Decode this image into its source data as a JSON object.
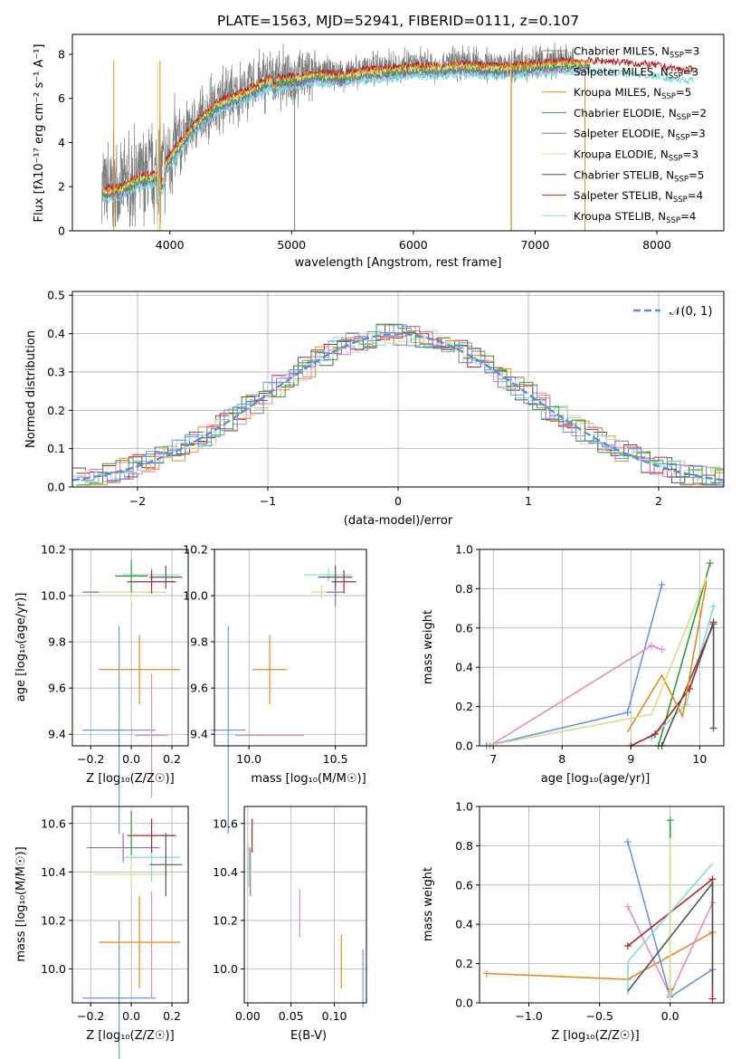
{
  "title": "PLATE=1563, MJD=52941, FIBERID=0111, z=0.107",
  "colors": {
    "Chabrier MILES": "#808080",
    "Salpeter MILES": "#e377c2",
    "Kroupa MILES": "#e88a1a",
    "Chabrier ELODIE": "#2ca02c",
    "Salpeter ELODIE": "#9467bd",
    "Kroupa ELODIE": "#dbdb8d",
    "Chabrier STELIB": "#555555",
    "Salpeter STELIB": "#b22222",
    "Kroupa STELIB": "#7fdbe0",
    "blue": "#6495ed",
    "pink": "#e88ac2",
    "gaussian": "#5b8fd6"
  },
  "spectrum": {
    "xlabel": "wavelength [Angstrom, rest frame]",
    "ylabel": "Flux [fλ10⁻¹⁷ erg cm⁻² s⁻¹ A⁻¹]",
    "xlim": [
      3200,
      8550
    ],
    "ylim": [
      0,
      8.9
    ],
    "xticks": [
      "4000",
      "5000",
      "6000",
      "7000",
      "8000"
    ],
    "yticks": [
      "0",
      "2",
      "4",
      "6",
      "8"
    ],
    "legend": [
      {
        "label": "Chabrier MILES, N",
        "sub": "SSP",
        "tail": "=3",
        "color": "#808080"
      },
      {
        "label": "Salpeter MILES, N",
        "sub": "SSP",
        "tail": "=3",
        "color": "#e377c2"
      },
      {
        "label": "Kroupa MILES, N",
        "sub": "SSP",
        "tail": "=5",
        "color": "#e88a1a"
      },
      {
        "label": "Chabrier ELODIE, N",
        "sub": "SSP",
        "tail": "=2",
        "color": "#2ca02c"
      },
      {
        "label": "Salpeter ELODIE, N",
        "sub": "SSP",
        "tail": "=3",
        "color": "#9467bd"
      },
      {
        "label": "Kroupa ELODIE, N",
        "sub": "SSP",
        "tail": "=3",
        "color": "#dbdb8d"
      },
      {
        "label": "Chabrier STELIB, N",
        "sub": "SSP",
        "tail": "=5",
        "color": "#555555"
      },
      {
        "label": "Salpeter STELIB, N",
        "sub": "SSP",
        "tail": "=4",
        "color": "#b22222"
      },
      {
        "label": "Kroupa STELIB, N",
        "sub": "SSP",
        "tail": "=4",
        "color": "#7fdbe0"
      }
    ]
  },
  "histogram": {
    "xlabel": "(data-model)/error",
    "ylabel": "Normed distribution",
    "legend_label": "𝒩(0, 1)",
    "xticks": [
      "−2",
      "−1",
      "0",
      "1",
      "2"
    ],
    "yticks": [
      "0.0",
      "0.1",
      "0.2",
      "0.3",
      "0.4",
      "0.5"
    ]
  },
  "panels": {
    "age_z": {
      "xlabel": "Z [log₁₀(Z/Z☉)]",
      "ylabel": "age  [log₁₀(age/yr)]",
      "xticks": [
        "−0.2",
        "0.0",
        "0.2"
      ],
      "yticks": [
        "9.4",
        "9.6",
        "9.8",
        "10.0",
        "10.2"
      ]
    },
    "age_mass": {
      "xlabel": "mass [log₁₀(M/M☉)]",
      "xticks": [
        "10.0",
        "10.5"
      ],
      "yticks": [
        "9.4",
        "9.6",
        "9.8",
        "10.0",
        "10.2"
      ]
    },
    "w_age": {
      "xlabel": "age  [log₁₀(age/yr)]",
      "ylabel": "mass weight",
      "xticks": [
        "7",
        "8",
        "9",
        "10"
      ],
      "yticks": [
        "0.0",
        "0.2",
        "0.4",
        "0.6",
        "0.8",
        "1.0"
      ]
    },
    "mass_z": {
      "xlabel": "Z [log₁₀(Z/Z☉)]",
      "ylabel": "mass [log₁₀(M/M☉)]",
      "xticks": [
        "−0.2",
        "0.0",
        "0.2"
      ],
      "yticks": [
        "10.0",
        "10.2",
        "10.4",
        "10.6"
      ]
    },
    "mass_ebv": {
      "xlabel": "E(B-V)",
      "xticks": [
        "0.00",
        "0.05",
        "0.10"
      ],
      "yticks": [
        "10.0",
        "10.2",
        "10.4",
        "10.6"
      ]
    },
    "w_z": {
      "xlabel": "Z [log₁₀(Z/Z☉)]",
      "ylabel": "mass weight",
      "xticks": [
        "−1.0",
        "−0.5",
        "0.0"
      ],
      "yticks": [
        "0.0",
        "0.2",
        "0.4",
        "0.6",
        "0.8",
        "1.0"
      ]
    }
  },
  "chart_data": [
    {
      "type": "line",
      "title": "PLATE=1563, MJD=52941, FIBERID=0111, z=0.107",
      "xlabel": "wavelength [Angstrom, rest frame]",
      "ylabel": "Flux [fλ10⁻¹⁷ erg cm⁻² s⁻¹ A⁻¹]",
      "xlim": [
        3200,
        8550
      ],
      "ylim": [
        0,
        8.9
      ],
      "x": [
        3450,
        3600,
        3750,
        3900,
        4050,
        4200,
        4400,
        4600,
        4800,
        5000,
        5200,
        5400,
        5600,
        5800,
        6000,
        6200,
        6400,
        6600,
        6800,
        7000,
        7200,
        7400,
        7600,
        7800,
        8000,
        8200,
        8300
      ],
      "series": [
        {
          "name": "Chabrier MILES, N_SSP=3",
          "values": [
            1.9,
            2.0,
            2.5,
            2.6,
            3.8,
            4.9,
            5.9,
            6.3,
            6.9,
            7.0,
            7.2,
            7.1,
            7.3,
            7.4,
            7.5,
            7.5,
            7.6,
            7.5,
            7.5,
            7.6,
            7.7,
            7.7,
            7.7,
            7.6,
            7.5,
            7.3,
            7.3
          ]
        },
        {
          "name": "Kroupa STELIB, N_SSP=4",
          "values": [
            1.9,
            2.1,
            2.4,
            2.7,
            3.7,
            4.8,
            5.8,
            6.2,
            6.8,
            6.9,
            7.1,
            7.1,
            7.2,
            7.3,
            7.4,
            7.5,
            7.5,
            7.5,
            7.5,
            7.6,
            7.6,
            7.7,
            7.6,
            7.6,
            7.5,
            7.3,
            7.3
          ]
        }
      ]
    },
    {
      "type": "bar",
      "title": "",
      "xlabel": "(data-model)/error",
      "ylabel": "Normed distribution",
      "xlim": [
        -2.5,
        2.5
      ],
      "ylim": [
        0,
        0.51
      ],
      "x": [
        -2.4,
        -2.2,
        -2.0,
        -1.8,
        -1.6,
        -1.4,
        -1.2,
        -1.0,
        -0.8,
        -0.6,
        -0.4,
        -0.2,
        0.0,
        0.2,
        0.4,
        0.6,
        0.8,
        1.0,
        1.2,
        1.4,
        1.6,
        1.8,
        2.0,
        2.2,
        2.4
      ],
      "series": [
        {
          "name": "𝒩(0, 1)",
          "values": [
            0.022,
            0.035,
            0.054,
            0.079,
            0.111,
            0.15,
            0.194,
            0.242,
            0.29,
            0.333,
            0.368,
            0.391,
            0.399,
            0.391,
            0.368,
            0.333,
            0.29,
            0.242,
            0.194,
            0.15,
            0.111,
            0.079,
            0.054,
            0.035,
            0.022
          ]
        }
      ]
    },
    {
      "type": "scatter",
      "xlabel": "age  [log₁₀(age/yr)]",
      "ylabel": "mass weight",
      "xlim": [
        6.8,
        10.35
      ],
      "ylim": [
        0,
        1.0
      ],
      "series": [
        {
          "name": "blue",
          "x": [
            6.9,
            8.95,
            9.45
          ],
          "values": [
            0.0,
            0.17,
            0.82
          ]
        },
        {
          "name": "pink",
          "x": [
            6.95,
            9.3,
            9.45
          ],
          "values": [
            0.0,
            0.51,
            0.49
          ]
        },
        {
          "name": "green",
          "x": [
            9.4,
            10.15
          ],
          "values": [
            0.0,
            0.93
          ]
        },
        {
          "name": "cyan",
          "x": [
            9.3,
            9.8,
            10.2
          ],
          "values": [
            0.04,
            0.21,
            0.71
          ]
        },
        {
          "name": "dark red",
          "x": [
            9.0,
            9.35,
            9.85,
            10.2
          ],
          "values": [
            0.0,
            0.06,
            0.29,
            0.63
          ]
        },
        {
          "name": "dark gray",
          "x": [
            9.45,
            10.2,
            10.2
          ],
          "values": [
            0.0,
            0.62,
            0.09
          ]
        }
      ]
    },
    {
      "type": "scatter",
      "xlabel": "Z [log₁₀(Z/Z☉)]",
      "ylabel": "mass weight",
      "xlim": [
        -1.35,
        0.38
      ],
      "ylim": [
        0,
        1.0
      ],
      "series": [
        {
          "name": "orange",
          "x": [
            -1.3,
            -0.3,
            0.3
          ],
          "values": [
            0.15,
            0.12,
            0.36
          ]
        },
        {
          "name": "blue",
          "x": [
            -0.3,
            0.0,
            0.3
          ],
          "values": [
            0.82,
            0.03,
            0.17
          ]
        },
        {
          "name": "pink",
          "x": [
            -0.3,
            0.0,
            0.3
          ],
          "values": [
            0.49,
            0.04,
            0.51
          ]
        },
        {
          "name": "green",
          "x": [
            0.0,
            0.0
          ],
          "values": [
            0.07,
            0.93
          ]
        },
        {
          "name": "dark red",
          "x": [
            -0.3,
            0.3,
            0.3
          ],
          "values": [
            0.29,
            0.63,
            0.02
          ]
        }
      ]
    }
  ]
}
